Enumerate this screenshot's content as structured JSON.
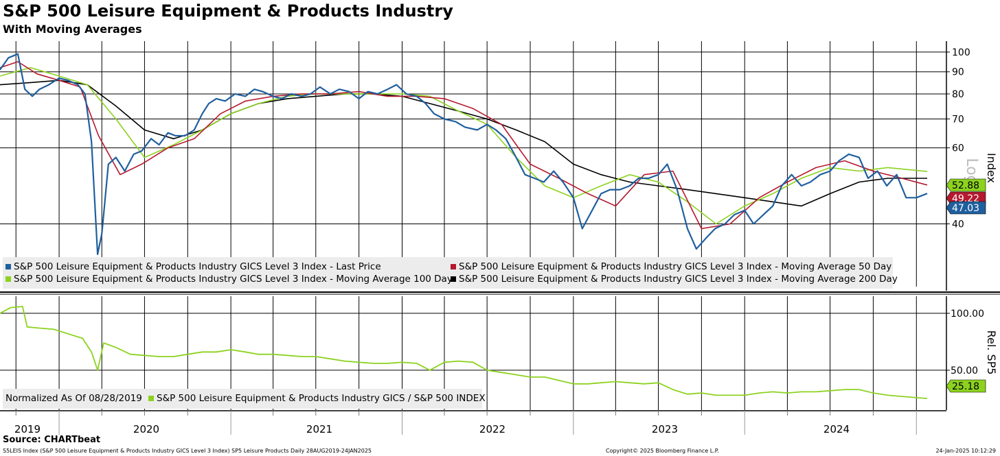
{
  "header": {
    "title": "S&P 500 Leisure Equipment & Products Industry",
    "subtitle": "With Moving Averages"
  },
  "source": "Source: CHARTbeat",
  "footer": {
    "left": "S5LEIS Index (S&P 500 Leisure Equipment & Products Industry GICS Level 3 Index) SP5 Leisure Products  Daily 28AUG2019-24JAN2025",
    "middle": "Copyright© 2025 Bloomberg Finance L.P.",
    "right": "24-Jan-2025 10:12:29"
  },
  "colors": {
    "last_price": "#1f5f9e",
    "ma50": "#b5192e",
    "ma100": "#8cd21f",
    "ma200": "#000000",
    "relative": "#8cd21f",
    "grid": "#000000"
  },
  "legend_top": [
    {
      "label": "S&P 500 Leisure Equipment & Products Industry GICS Level 3 Index - Last Price",
      "color": "#1f5f9e"
    },
    {
      "label": "S&P 500 Leisure Equipment & Products Industry GICS Level 3 Index - Moving Average 50 Day",
      "color": "#b5192e"
    },
    {
      "label": "S&P 500 Leisure Equipment & Products Industry GICS Level 3 Index - Moving Average 100 Day",
      "color": "#8cd21f"
    },
    {
      "label": "S&P 500 Leisure Equipment & Products Industry GICS Level 3 Index - Moving Average 200 Day",
      "color": "#000000"
    }
  ],
  "legend_bottom": {
    "note": "Normalized As Of 08/28/2019",
    "label": "S&P 500 Leisure Equipment & Products Industry GICS / S&P 500 INDEX",
    "color": "#8cd21f"
  },
  "chart_data": [
    {
      "type": "line",
      "ylabel": "Index",
      "scale": "log",
      "scale_label": "Log",
      "ylim": [
        28,
        106
      ],
      "yticks": [
        40,
        60,
        70,
        80,
        90,
        100
      ],
      "x_labels": [
        "2019",
        "2020",
        "2021",
        "2022",
        "2023",
        "2024"
      ],
      "series": [
        {
          "name": "S&P 500 Leisure Equipment & Products Industry GICS Level 3 Index - Last Price",
          "color": "#1f5f9e",
          "x": [
            "2019-08-28",
            "2019-09-15",
            "2019-10-05",
            "2019-10-20",
            "2019-11-05",
            "2019-11-20",
            "2019-12-10",
            "2020-01-01",
            "2020-01-20",
            "2020-02-10",
            "2020-02-25",
            "2020-03-10",
            "2020-03-23",
            "2020-04-01",
            "2020-04-15",
            "2020-05-01",
            "2020-05-20",
            "2020-06-08",
            "2020-06-25",
            "2020-07-15",
            "2020-08-01",
            "2020-08-20",
            "2020-09-05",
            "2020-09-25",
            "2020-10-15",
            "2020-11-01",
            "2020-11-15",
            "2020-12-01",
            "2020-12-20",
            "2021-01-10",
            "2021-02-01",
            "2021-02-20",
            "2021-03-10",
            "2021-04-01",
            "2021-04-20",
            "2021-05-10",
            "2021-06-01",
            "2021-06-20",
            "2021-07-10",
            "2021-08-01",
            "2021-08-20",
            "2021-09-10",
            "2021-10-01",
            "2021-10-20",
            "2021-11-10",
            "2021-12-01",
            "2021-12-20",
            "2022-01-10",
            "2022-02-01",
            "2022-02-20",
            "2022-03-10",
            "2022-04-01",
            "2022-04-25",
            "2022-05-15",
            "2022-06-10",
            "2022-07-01",
            "2022-07-20",
            "2022-08-10",
            "2022-09-01",
            "2022-09-20",
            "2022-10-10",
            "2022-10-30",
            "2022-11-20",
            "2022-12-10",
            "2023-01-01",
            "2023-01-20",
            "2023-02-10",
            "2023-03-01",
            "2023-03-20",
            "2023-04-10",
            "2023-05-01",
            "2023-05-20",
            "2023-06-10",
            "2023-07-01",
            "2023-07-20",
            "2023-08-10",
            "2023-09-01",
            "2023-09-20",
            "2023-10-10",
            "2023-10-30",
            "2023-11-20",
            "2023-12-10",
            "2024-01-01",
            "2024-01-20",
            "2024-02-10",
            "2024-03-01",
            "2024-03-20",
            "2024-04-10",
            "2024-05-01",
            "2024-05-20",
            "2024-06-10",
            "2024-07-01",
            "2024-07-20",
            "2024-08-10",
            "2024-09-01",
            "2024-09-20",
            "2024-10-10",
            "2024-10-30",
            "2024-11-20",
            "2024-12-10",
            "2025-01-01",
            "2025-01-24"
          ],
          "values": [
            91,
            97,
            99,
            82,
            79,
            82,
            84,
            87,
            86,
            84,
            80,
            62,
            34,
            38,
            55,
            57,
            53,
            58,
            59,
            63,
            61,
            65,
            64,
            64,
            66,
            72,
            76,
            78,
            77,
            80,
            79,
            82,
            81,
            79,
            78,
            80,
            79,
            80,
            83,
            80,
            82,
            81,
            78,
            81,
            80,
            82,
            84,
            80,
            79,
            76,
            72,
            70,
            69,
            67,
            66,
            68,
            66,
            63,
            57,
            52,
            51,
            50,
            53,
            50,
            46,
            39,
            43,
            47,
            48,
            48,
            49,
            51,
            51,
            52,
            55,
            48,
            39,
            35,
            37,
            39,
            40,
            42,
            43,
            40,
            42,
            44,
            49,
            52,
            49,
            50,
            52,
            53,
            56,
            58,
            57,
            51,
            53,
            49,
            52,
            46,
            46,
            47.03
          ]
        },
        {
          "name": "S&P 500 Leisure Equipment & Products Industry GICS Level 3 Index - Moving Average 50 Day",
          "color": "#b5192e",
          "x": [
            "2019-08-28",
            "2019-10-05",
            "2019-11-15",
            "2020-01-01",
            "2020-02-15",
            "2020-03-25",
            "2020-05-10",
            "2020-06-25",
            "2020-08-20",
            "2020-10-15",
            "2020-12-10",
            "2021-02-01",
            "2021-04-01",
            "2021-06-01",
            "2021-08-01",
            "2021-10-01",
            "2021-12-01",
            "2022-02-01",
            "2022-04-01",
            "2022-06-01",
            "2022-08-01",
            "2022-10-01",
            "2022-12-01",
            "2023-02-01",
            "2023-04-01",
            "2023-06-01",
            "2023-08-01",
            "2023-10-01",
            "2023-12-01",
            "2024-02-01",
            "2024-04-01",
            "2024-06-01",
            "2024-08-01",
            "2024-10-01",
            "2024-12-01",
            "2025-01-24"
          ],
          "values": [
            92,
            95,
            89,
            86,
            83,
            64,
            52,
            55,
            60,
            63,
            72,
            77,
            79,
            80,
            80,
            81,
            79,
            79,
            78,
            74,
            68,
            55,
            51,
            47,
            44,
            52,
            53,
            39,
            40,
            46,
            50,
            54,
            56,
            53,
            51,
            49.22
          ]
        },
        {
          "name": "S&P 500 Leisure Equipment & Products Industry GICS Level 3 Index - Moving Average 100 Day",
          "color": "#8cd21f",
          "x": [
            "2019-08-28",
            "2019-11-01",
            "2020-01-01",
            "2020-03-01",
            "2020-05-01",
            "2020-07-01",
            "2020-09-01",
            "2020-11-01",
            "2021-01-01",
            "2021-03-01",
            "2021-05-01",
            "2021-07-01",
            "2021-09-01",
            "2021-11-01",
            "2022-01-01",
            "2022-03-01",
            "2022-05-01",
            "2022-07-01",
            "2022-09-01",
            "2022-11-01",
            "2023-01-01",
            "2023-03-01",
            "2023-05-01",
            "2023-07-01",
            "2023-09-01",
            "2023-11-01",
            "2024-01-01",
            "2024-03-01",
            "2024-05-01",
            "2024-07-01",
            "2024-09-01",
            "2024-11-01",
            "2025-01-24"
          ],
          "values": [
            88,
            92,
            88,
            84,
            70,
            57,
            61,
            66,
            72,
            76,
            79,
            80,
            80,
            80,
            80,
            79,
            73,
            68,
            57,
            49,
            46,
            49,
            52,
            50,
            45,
            40,
            44,
            47,
            51,
            54,
            53,
            54,
            52.88
          ]
        },
        {
          "name": "S&P 500 Leisure Equipment & Products Industry GICS Level 3 Index - Moving Average 200 Day",
          "color": "#000000",
          "x": [
            "2019-08-28",
            "2019-11-01",
            "2020-01-01",
            "2020-03-01",
            "2020-05-01",
            "2020-07-01",
            "2020-09-01",
            "2020-11-01",
            "2021-01-01",
            "2021-03-01",
            "2021-05-01",
            "2021-07-01",
            "2021-09-01",
            "2021-11-01",
            "2022-01-01",
            "2022-03-01",
            "2022-05-01",
            "2022-07-01",
            "2022-09-01",
            "2022-11-01",
            "2023-01-01",
            "2023-03-01",
            "2023-05-01",
            "2023-07-01",
            "2023-09-01",
            "2023-11-01",
            "2024-01-01",
            "2024-03-01",
            "2024-05-01",
            "2024-07-01",
            "2024-09-01",
            "2024-11-01",
            "2025-01-24"
          ],
          "values": [
            84,
            85,
            86,
            84,
            75,
            66,
            63,
            66,
            72,
            76,
            78,
            79,
            80,
            80,
            79,
            76,
            73,
            70,
            66,
            62,
            55,
            52,
            50,
            49,
            48,
            47,
            46,
            45,
            44,
            47,
            50,
            51,
            51
          ]
        }
      ],
      "last_values": [
        {
          "label": "52.88",
          "value": 52.88,
          "color": "#8cd21f"
        },
        {
          "label": "49.22",
          "value": 49.22,
          "color": "#b5192e"
        },
        {
          "label": "47.03",
          "value": 47.03,
          "color": "#1f5f9e"
        }
      ]
    },
    {
      "type": "line",
      "ylabel": "Rel. SP5",
      "ylim": [
        15,
        115
      ],
      "yticks": [
        50,
        100
      ],
      "ytick_labels": [
        "50.00",
        "100.00"
      ],
      "series": [
        {
          "name": "S&P 500 Leisure Equipment & Products Industry GICS / S&P 500 INDEX",
          "color": "#8cd21f",
          "x": [
            "2019-08-28",
            "2019-09-20",
            "2019-10-15",
            "2019-10-25",
            "2019-11-20",
            "2019-12-20",
            "2020-01-20",
            "2020-02-20",
            "2020-03-10",
            "2020-03-23",
            "2020-04-05",
            "2020-05-01",
            "2020-06-01",
            "2020-07-01",
            "2020-08-01",
            "2020-09-01",
            "2020-10-01",
            "2020-11-01",
            "2020-12-01",
            "2021-01-01",
            "2021-02-01",
            "2021-03-01",
            "2021-04-01",
            "2021-05-01",
            "2021-06-01",
            "2021-07-01",
            "2021-08-01",
            "2021-09-01",
            "2021-10-01",
            "2021-11-01",
            "2021-12-01",
            "2022-01-01",
            "2022-02-01",
            "2022-03-01",
            "2022-04-01",
            "2022-05-01",
            "2022-06-01",
            "2022-07-01",
            "2022-08-01",
            "2022-09-01",
            "2022-10-01",
            "2022-11-01",
            "2022-12-01",
            "2023-01-01",
            "2023-02-01",
            "2023-03-01",
            "2023-04-01",
            "2023-05-01",
            "2023-06-01",
            "2023-07-01",
            "2023-08-01",
            "2023-09-01",
            "2023-10-01",
            "2023-11-01",
            "2023-12-01",
            "2024-01-01",
            "2024-02-01",
            "2024-03-01",
            "2024-04-01",
            "2024-05-01",
            "2024-06-01",
            "2024-07-01",
            "2024-08-01",
            "2024-09-01",
            "2024-10-01",
            "2024-11-01",
            "2024-12-01",
            "2025-01-24"
          ],
          "values": [
            100,
            105,
            106,
            88,
            87,
            86,
            82,
            78,
            66,
            50,
            74,
            70,
            64,
            63,
            62,
            62,
            64,
            66,
            66,
            68,
            66,
            64,
            64,
            63,
            62,
            62,
            60,
            58,
            57,
            56,
            56,
            57,
            56,
            50,
            57,
            58,
            57,
            50,
            48,
            46,
            44,
            44,
            41,
            38,
            38,
            39,
            40,
            39,
            38,
            39,
            33,
            29,
            30,
            28,
            28,
            28,
            30,
            31,
            30,
            31,
            31,
            32,
            33,
            33,
            30,
            28,
            27,
            25.18
          ]
        }
      ],
      "last_values": [
        {
          "label": "25.18",
          "value": 25.18,
          "color": "#8cd21f"
        }
      ]
    }
  ]
}
